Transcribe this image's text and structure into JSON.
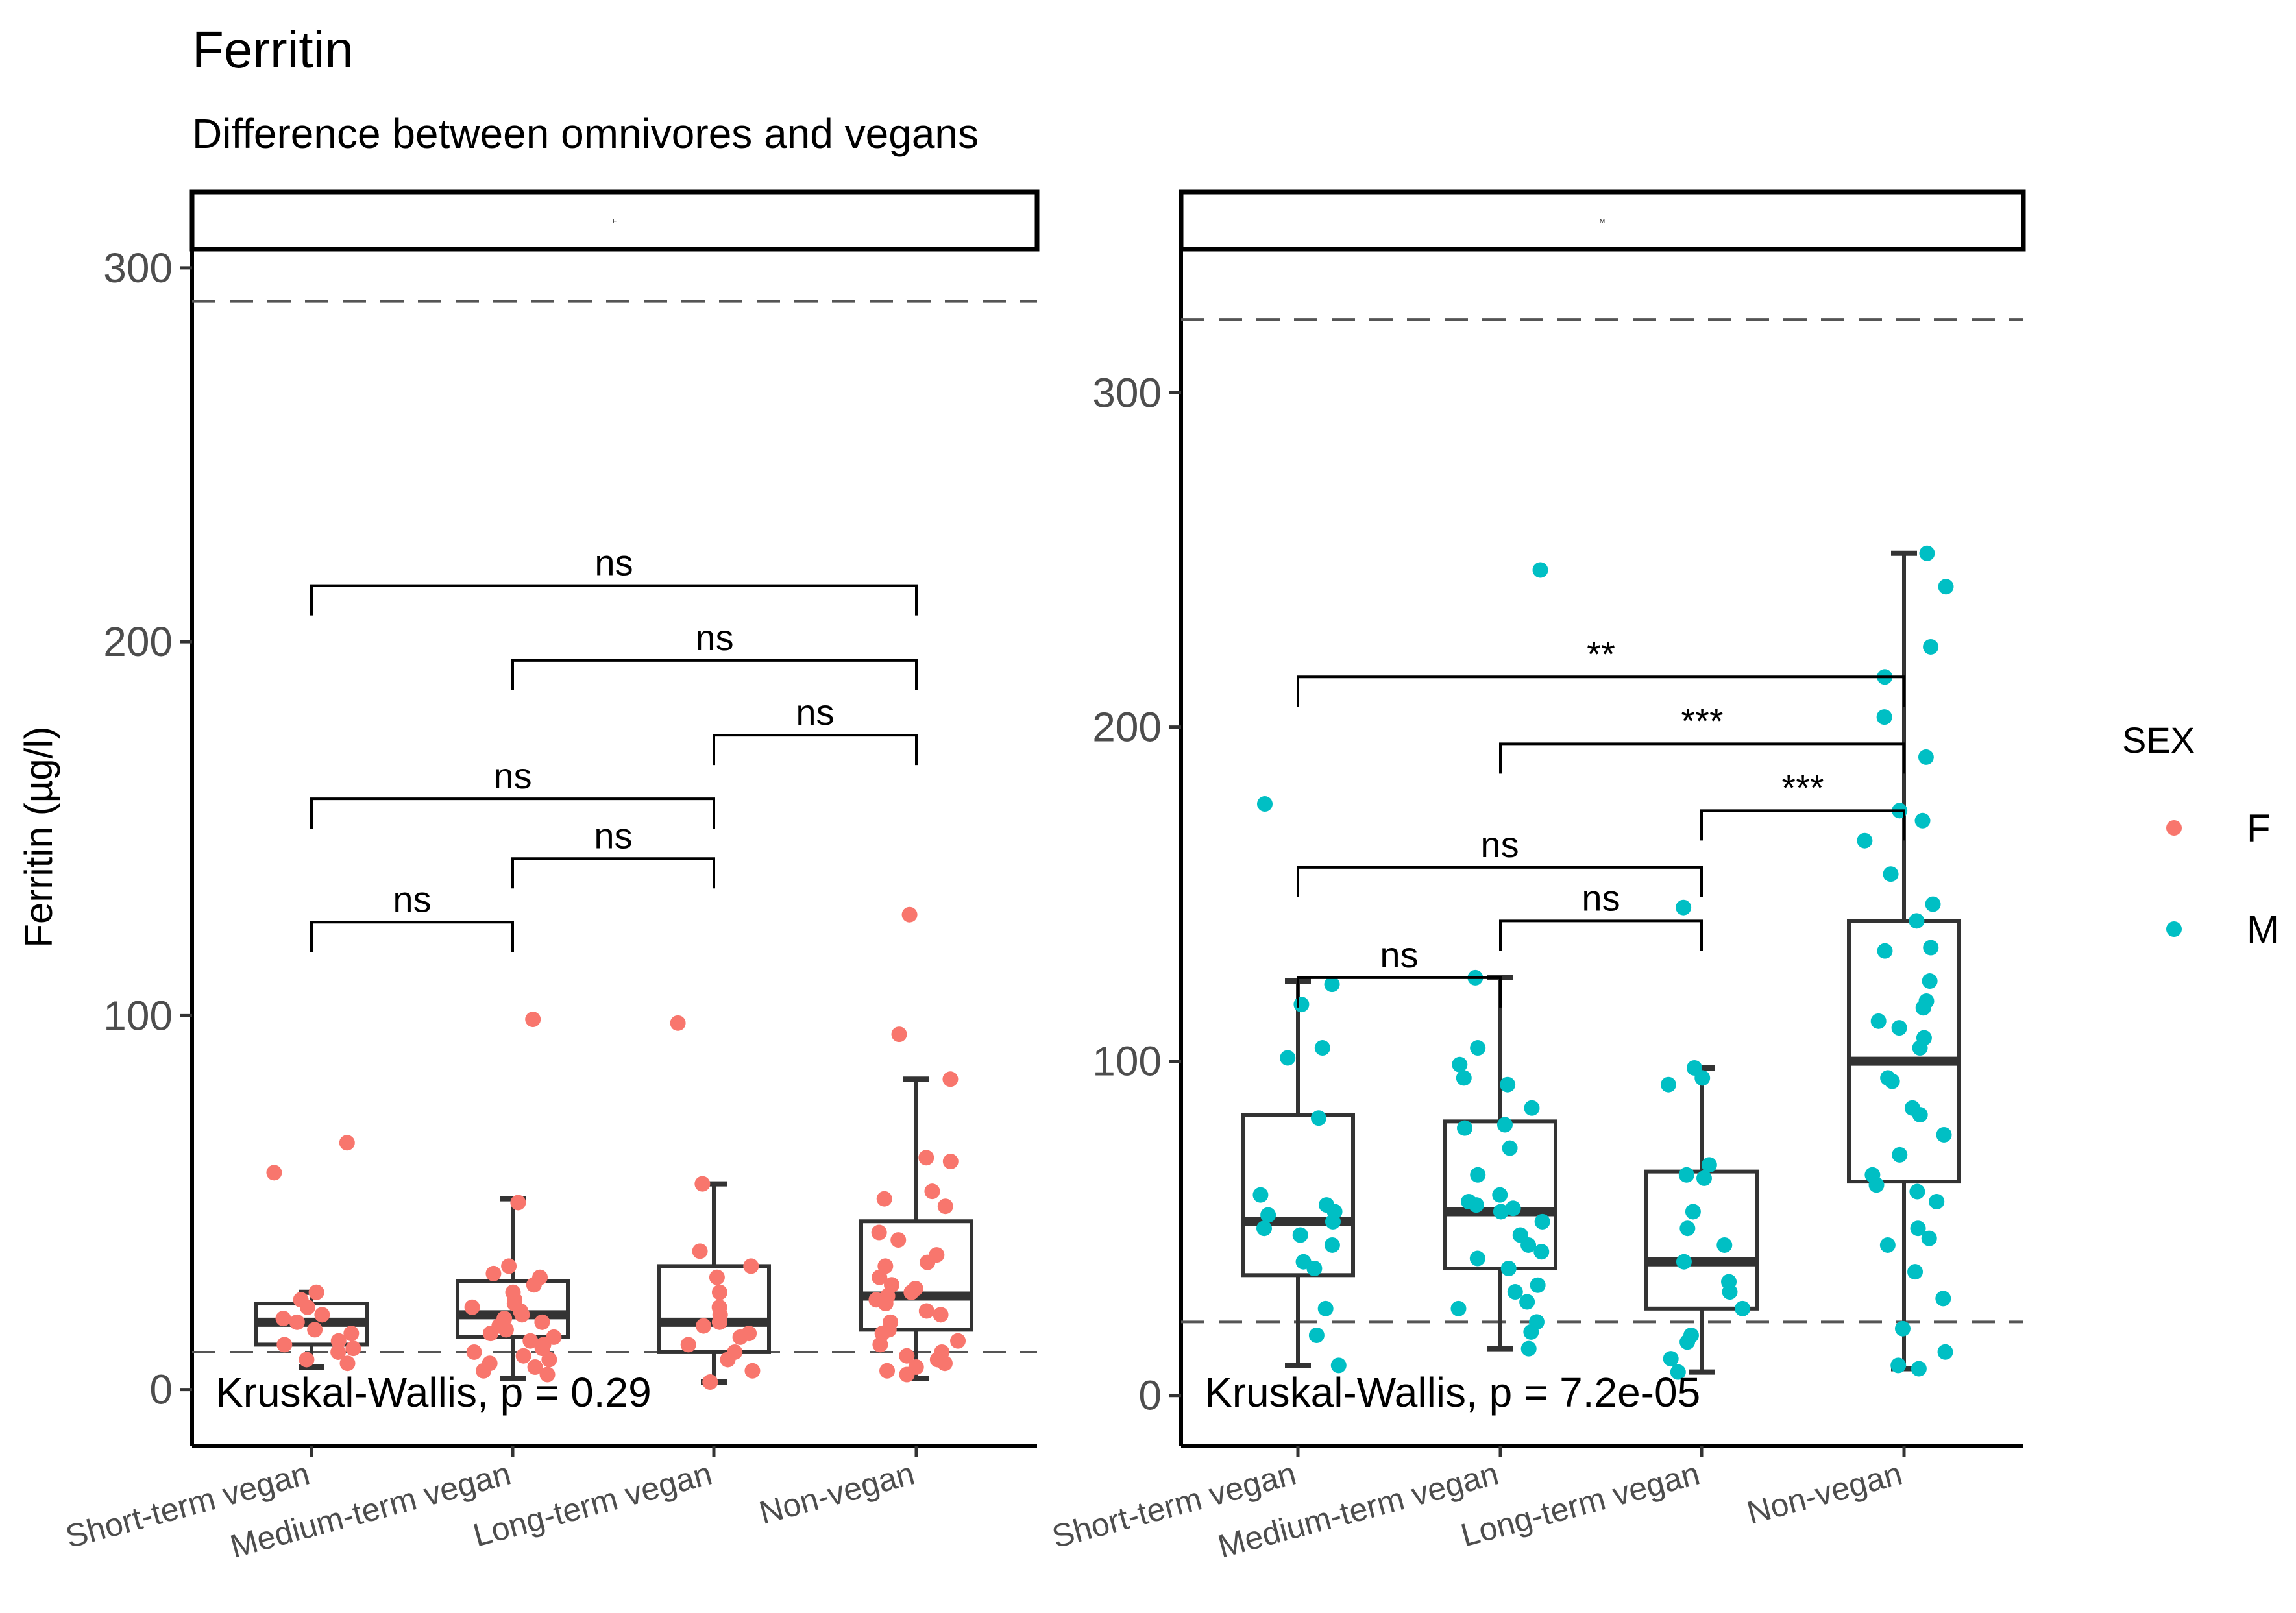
{
  "chart_data": {
    "type": "box",
    "title": "Ferritin",
    "subtitle": "Difference between omnivores and vegans",
    "ylabel": "Ferritin (µg/l)",
    "xlabel": "",
    "categories": [
      "Short-term vegan",
      "Medium-term vegan",
      "Long-term vegan",
      "Non-vegan"
    ],
    "legend": {
      "title": "SEX",
      "position": "right",
      "entries": [
        {
          "label": "F",
          "color": "#F8766D"
        },
        {
          "label": "M",
          "color": "#00BFC4"
        }
      ]
    },
    "panels": [
      {
        "strip_label": "F",
        "sex": "F",
        "color": "#F8766D",
        "ylim": [
          -15,
          305
        ],
        "yticks": [
          0,
          100,
          200,
          300
        ],
        "reference_lines": [
          10,
          291
        ],
        "test_label": "Kruskal-Wallis, p = 0.29",
        "boxes": [
          {
            "category": "Short-term vegan",
            "q1": 12,
            "median": 18,
            "q3": 23,
            "whisker_low": 6,
            "whisker_high": 26
          },
          {
            "category": "Medium-term vegan",
            "q1": 14,
            "median": 20,
            "q3": 29,
            "whisker_low": 3,
            "whisker_high": 51
          },
          {
            "category": "Long-term vegan",
            "q1": 10,
            "median": 18,
            "q3": 33,
            "whisker_low": 2,
            "whisker_high": 55
          },
          {
            "category": "Non-vegan",
            "q1": 16,
            "median": 25,
            "q3": 45,
            "whisker_low": 3,
            "whisker_high": 83
          }
        ],
        "points": [
          {
            "category": "Short-term vegan",
            "values": [
              66,
              58,
              26,
              24,
              22,
              20,
              19,
              18,
              16,
              15,
              13,
              12,
              11,
              10,
              8,
              7
            ]
          },
          {
            "category": "Medium-term vegan",
            "values": [
              99,
              50,
              33,
              31,
              30,
              28,
              26,
              24,
              23,
              22,
              21,
              20,
              19,
              18,
              17,
              16,
              15,
              14,
              13,
              12,
              11,
              10,
              9,
              8,
              7,
              6,
              5,
              4
            ]
          },
          {
            "category": "Long-term vegan",
            "values": [
              98,
              55,
              37,
              33,
              30,
              26,
              22,
              20,
              18,
              17,
              15,
              14,
              12,
              10,
              8,
              5,
              2
            ]
          },
          {
            "category": "Non-vegan",
            "values": [
              127,
              95,
              83,
              62,
              61,
              53,
              51,
              49,
              42,
              40,
              36,
              34,
              33,
              30,
              28,
              27,
              26,
              25,
              24,
              23,
              21,
              20,
              18,
              16,
              15,
              13,
              12,
              10,
              9,
              8,
              7,
              6,
              5,
              4
            ]
          }
        ],
        "comparisons": [
          {
            "from": "Short-term vegan",
            "to": "Non-vegan",
            "y": 215,
            "label": "ns"
          },
          {
            "from": "Medium-term vegan",
            "to": "Non-vegan",
            "y": 195,
            "label": "ns"
          },
          {
            "from": "Long-term vegan",
            "to": "Non-vegan",
            "y": 175,
            "label": "ns"
          },
          {
            "from": "Short-term vegan",
            "to": "Long-term vegan",
            "y": 158,
            "label": "ns"
          },
          {
            "from": "Medium-term vegan",
            "to": "Long-term vegan",
            "y": 142,
            "label": "ns"
          },
          {
            "from": "Short-term vegan",
            "to": "Medium-term vegan",
            "y": 125,
            "label": "ns"
          }
        ]
      },
      {
        "strip_label": "M",
        "sex": "M",
        "color": "#00BFC4",
        "ylim": [
          -15,
          343
        ],
        "yticks": [
          0,
          100,
          200,
          300
        ],
        "reference_lines": [
          22,
          322
        ],
        "test_label": "Kruskal-Wallis, p = 7.2e-05",
        "boxes": [
          {
            "category": "Short-term vegan",
            "q1": 36,
            "median": 52,
            "q3": 84,
            "whisker_low": 9,
            "whisker_high": 124
          },
          {
            "category": "Medium-term vegan",
            "q1": 38,
            "median": 55,
            "q3": 82,
            "whisker_low": 14,
            "whisker_high": 125
          },
          {
            "category": "Long-term vegan",
            "q1": 26,
            "median": 40,
            "q3": 67,
            "whisker_low": 7,
            "whisker_high": 98
          },
          {
            "category": "Non-vegan",
            "q1": 64,
            "median": 100,
            "q3": 142,
            "whisker_low": 8,
            "whisker_high": 252
          }
        ],
        "points": [
          {
            "category": "Short-term vegan",
            "values": [
              177,
              123,
              117,
              104,
              101,
              83,
              60,
              57,
              55,
              54,
              52,
              50,
              48,
              45,
              40,
              38,
              26,
              18,
              9
            ]
          },
          {
            "category": "Medium-term vegan",
            "values": [
              247,
              125,
              104,
              99,
              95,
              93,
              86,
              81,
              80,
              74,
              66,
              60,
              58,
              57,
              56,
              55,
              52,
              48,
              45,
              43,
              41,
              38,
              33,
              31,
              28,
              26,
              22,
              19,
              14
            ]
          },
          {
            "category": "Long-term vegan",
            "values": [
              146,
              98,
              95,
              93,
              69,
              66,
              65,
              55,
              50,
              45,
              40,
              34,
              31,
              26,
              18,
              16,
              11,
              7
            ]
          },
          {
            "category": "Non-vegan",
            "values": [
              252,
              242,
              224,
              215,
              203,
              191,
              175,
              172,
              166,
              156,
              147,
              142,
              134,
              133,
              124,
              118,
              116,
              112,
              110,
              107,
              104,
              95,
              94,
              86,
              84,
              78,
              72,
              66,
              63,
              61,
              58,
              50,
              47,
              45,
              37,
              29,
              20,
              13,
              9,
              8
            ]
          }
        ],
        "comparisons": [
          {
            "from": "Short-term vegan",
            "to": "Non-vegan",
            "y": 215,
            "label": "**"
          },
          {
            "from": "Medium-term vegan",
            "to": "Non-vegan",
            "y": 195,
            "label": "***"
          },
          {
            "from": "Long-term vegan",
            "to": "Non-vegan",
            "y": 175,
            "label": "***"
          },
          {
            "from": "Short-term vegan",
            "to": "Long-term vegan",
            "y": 158,
            "label": "ns"
          },
          {
            "from": "Medium-term vegan",
            "to": "Long-term vegan",
            "y": 142,
            "label": "ns"
          },
          {
            "from": "Short-term vegan",
            "to": "Medium-term vegan",
            "y": 125,
            "label": "ns"
          }
        ]
      }
    ]
  }
}
